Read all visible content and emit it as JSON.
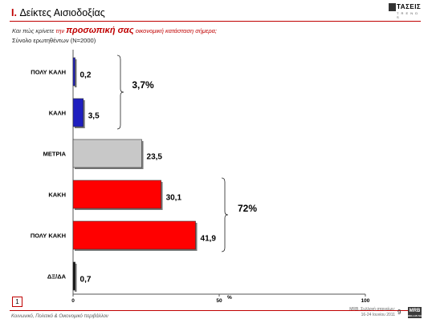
{
  "header": {
    "section_number": "I.",
    "section_title": "Δείκτες Αισιοδοξίας",
    "logo_text": "ΤΑΣΕΙΣ",
    "logo_sub": "T R E N D S"
  },
  "question": {
    "prefix": "Και πώς κρίνετε",
    "article": "την",
    "emphasis": "προσωπική σας",
    "suffix": "οικονομική κατάσταση σήμερα;"
  },
  "base_text": "Σύνολο ερωτηθέντων (N=2000)",
  "chart_data": {
    "type": "bar",
    "orientation": "horizontal",
    "categories": [
      "ΠΟΛΥ ΚΑΛΗ",
      "ΚΑΛΗ",
      "ΜΕΤΡΙΑ",
      "ΚΑΚΗ",
      "ΠΟΛΥ ΚΑΚΗ",
      "ΔΞ/ΔΑ"
    ],
    "values": [
      0.2,
      3.5,
      23.5,
      30.1,
      41.9,
      0.7
    ],
    "value_labels": [
      "0,2",
      "3,5",
      "23,5",
      "30,1",
      "41,9",
      "0,7"
    ],
    "bar_colors": [
      "#1f1fbf",
      "#1f1fbf",
      "#c8c8c8",
      "#ff0000",
      "#ff0000",
      "#111111"
    ],
    "xlim": [
      0,
      100
    ],
    "x_ticks": [
      "0",
      "50",
      "100"
    ],
    "xlabel": "%",
    "grid": false,
    "brackets": [
      {
        "categories": [
          "ΠΟΛΥ ΚΑΛΗ",
          "ΚΑΛΗ"
        ],
        "label": "3,7%"
      },
      {
        "categories": [
          "ΚΑΚΗ",
          "ΠΟΛΥ ΚΑΚΗ"
        ],
        "label": "72%"
      }
    ]
  },
  "footer": {
    "slide_number": "1",
    "left_text": "Κοινωνικό, Πολιτικό & Οικονομικό περιβάλλον",
    "right_line1": "MRB, Συλλογή στοιχείων:",
    "right_line2": "16-24 Ιουνίου 2011",
    "page_number": "9",
    "brand": "MRB",
    "brand_sub": "HELLAS SA"
  }
}
